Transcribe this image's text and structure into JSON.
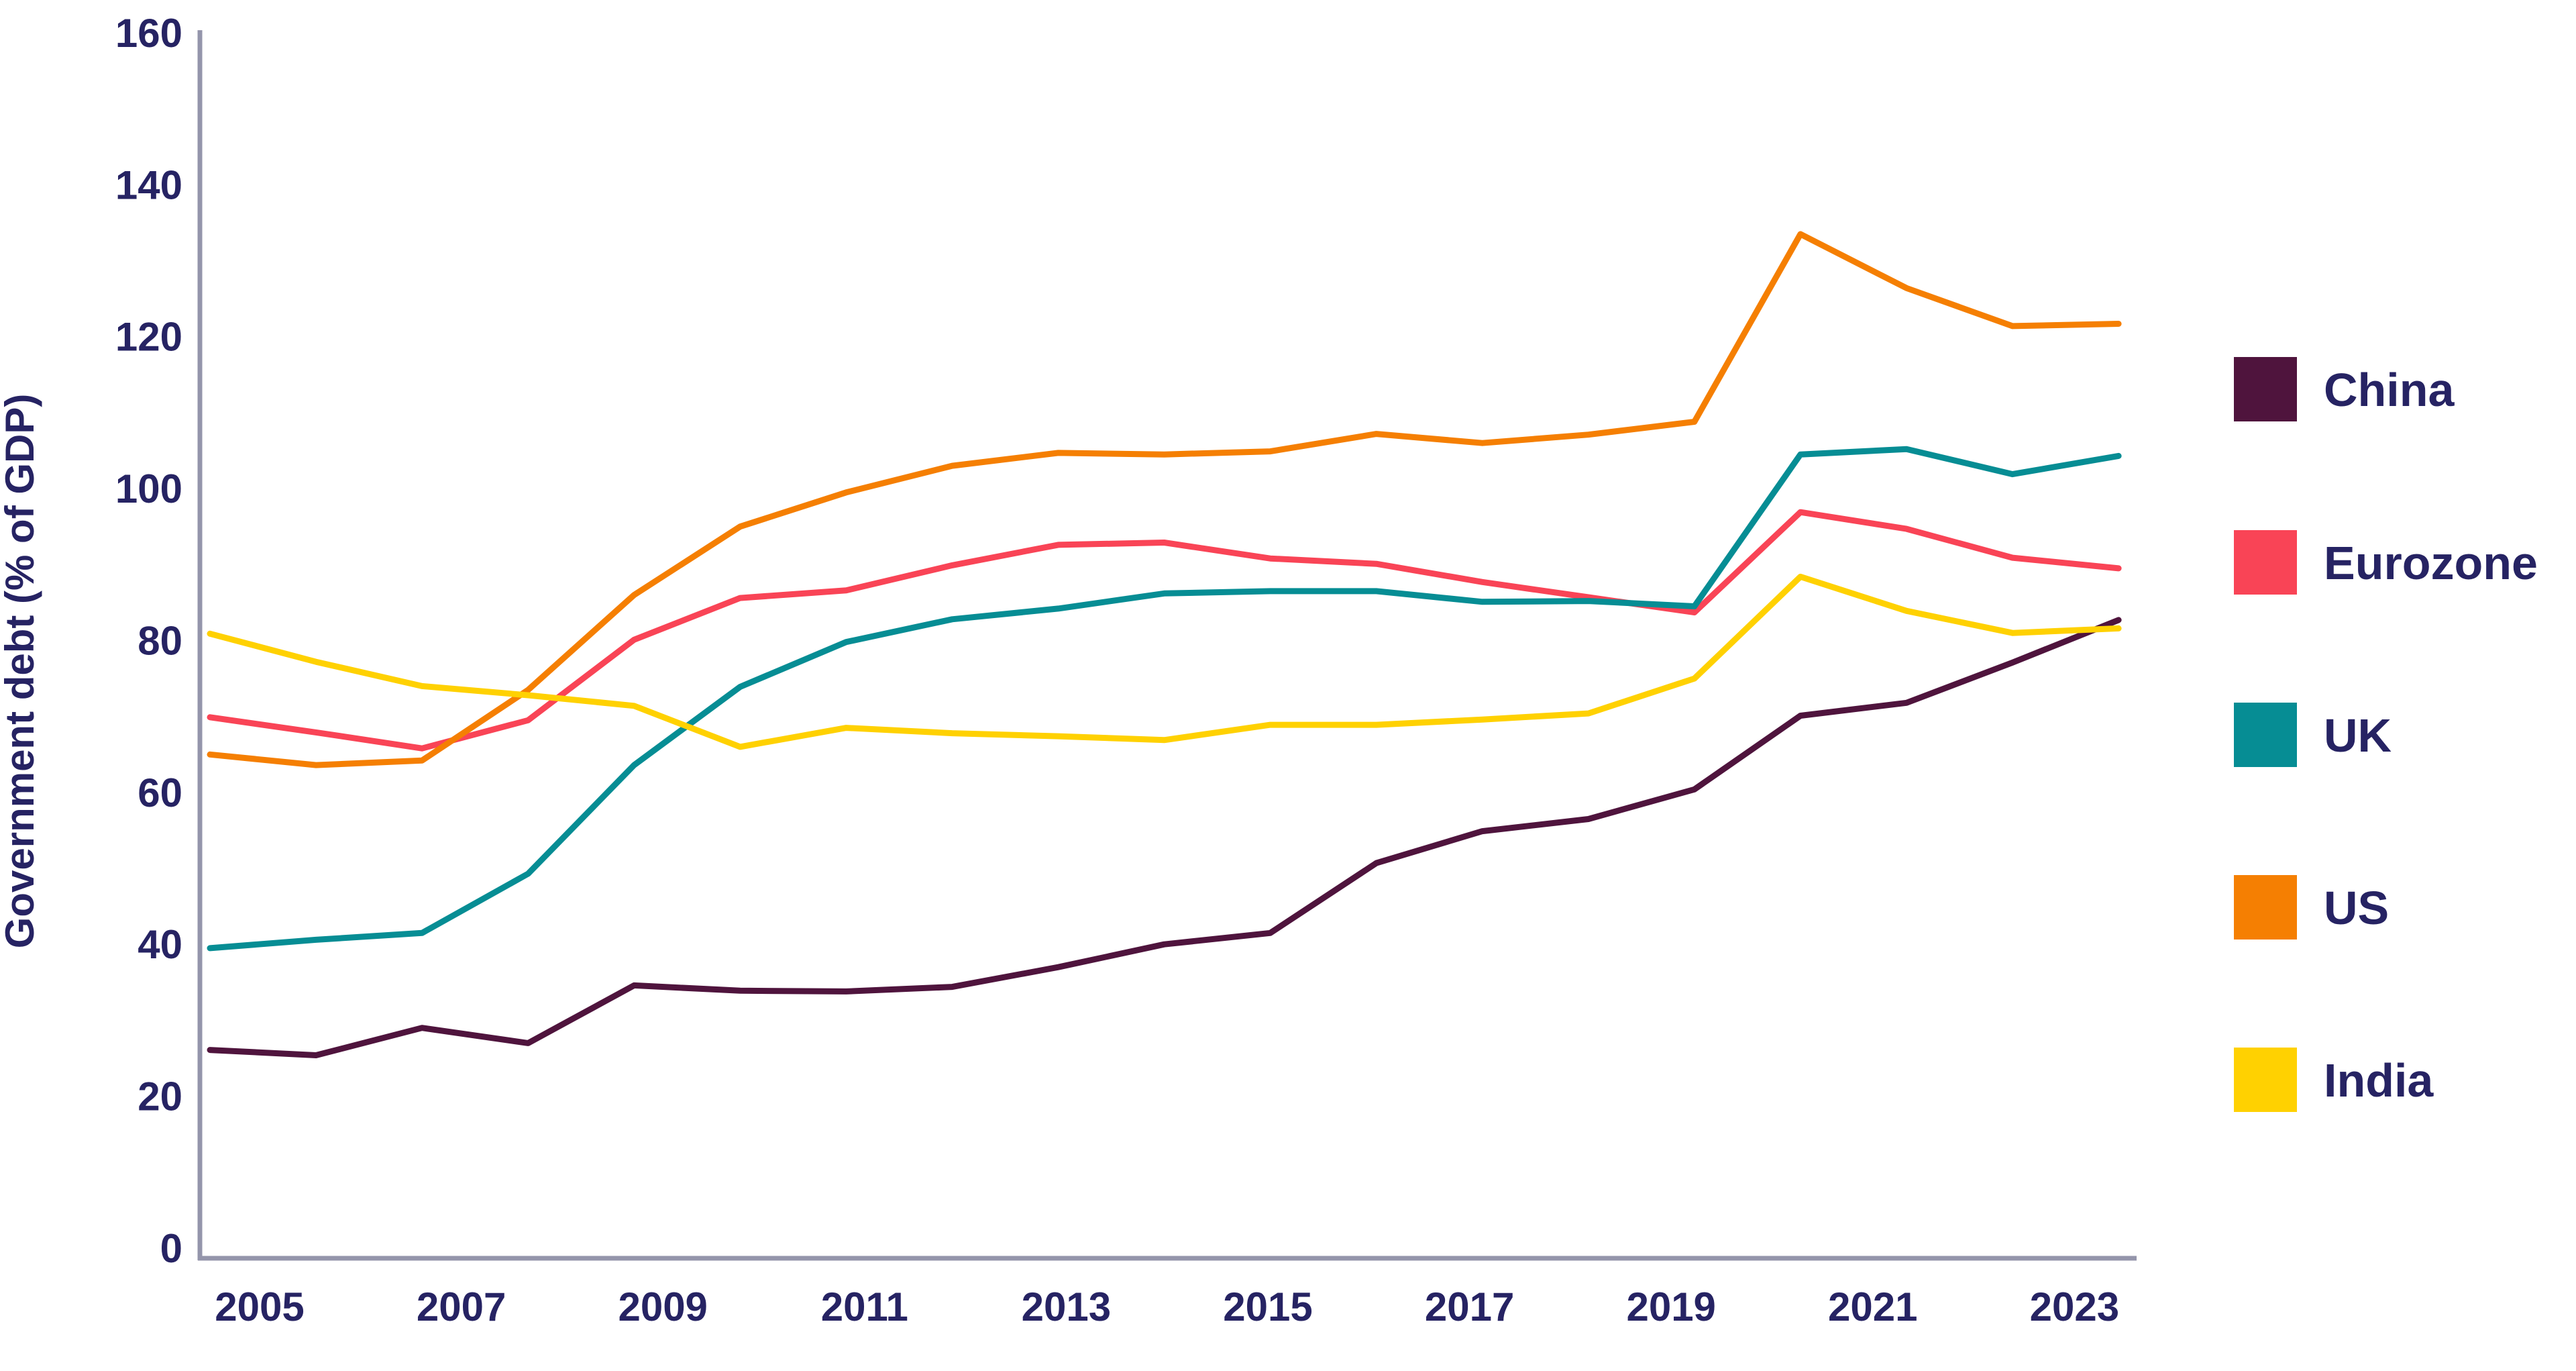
{
  "chart_data": {
    "type": "line",
    "ylabel": "Government debt (% of GDP)",
    "xlabel": "",
    "x": [
      2005,
      2006,
      2007,
      2008,
      2009,
      2010,
      2011,
      2012,
      2013,
      2014,
      2015,
      2016,
      2017,
      2018,
      2019,
      2020,
      2021,
      2022,
      2023
    ],
    "series": [
      {
        "name": "China",
        "color": "#4F143D",
        "values": [
          26.1,
          25.4,
          29.0,
          27.0,
          34.6,
          33.9,
          33.8,
          34.4,
          37.0,
          40.0,
          41.5,
          50.7,
          54.9,
          56.5,
          60.4,
          70.1,
          71.8,
          77.1,
          82.7
        ]
      },
      {
        "name": "Eurozone",
        "color": "#F94456",
        "values": [
          69.9,
          67.9,
          65.8,
          69.5,
          80.1,
          85.6,
          86.6,
          89.9,
          92.6,
          92.9,
          90.8,
          90.1,
          87.7,
          85.7,
          83.7,
          96.9,
          94.7,
          90.9,
          89.5
        ]
      },
      {
        "name": "UK",
        "color": "#068D94",
        "values": [
          39.5,
          40.6,
          41.5,
          49.3,
          63.6,
          73.9,
          79.8,
          82.8,
          84.2,
          86.2,
          86.5,
          86.5,
          85.1,
          85.2,
          84.5,
          104.5,
          105.2,
          101.9,
          104.3
        ]
      },
      {
        "name": "US",
        "color": "#F57F02",
        "values": [
          65.0,
          63.6,
          64.2,
          73.5,
          86.0,
          95.0,
          99.5,
          103.0,
          104.7,
          104.5,
          104.9,
          107.2,
          106.0,
          107.1,
          108.8,
          133.5,
          126.4,
          121.4,
          121.7
        ]
      },
      {
        "name": "India",
        "color": "#FFD101",
        "values": [
          80.9,
          77.2,
          74.0,
          72.8,
          71.4,
          66.0,
          68.5,
          67.8,
          67.4,
          66.9,
          68.9,
          68.9,
          69.6,
          70.4,
          75.0,
          88.4,
          83.9,
          81.0,
          81.6
        ]
      }
    ],
    "ylim": [
      0,
      160
    ],
    "yticks": [
      0,
      20,
      40,
      60,
      80,
      100,
      120,
      140,
      160
    ],
    "xticks": [
      2005,
      2007,
      2009,
      2011,
      2013,
      2015,
      2017,
      2019,
      2021,
      2023
    ],
    "grid": false,
    "legend_position": "right"
  },
  "colors": {
    "background": "#FFFFFF",
    "axis": "#9495AB",
    "text": "#262363"
  }
}
